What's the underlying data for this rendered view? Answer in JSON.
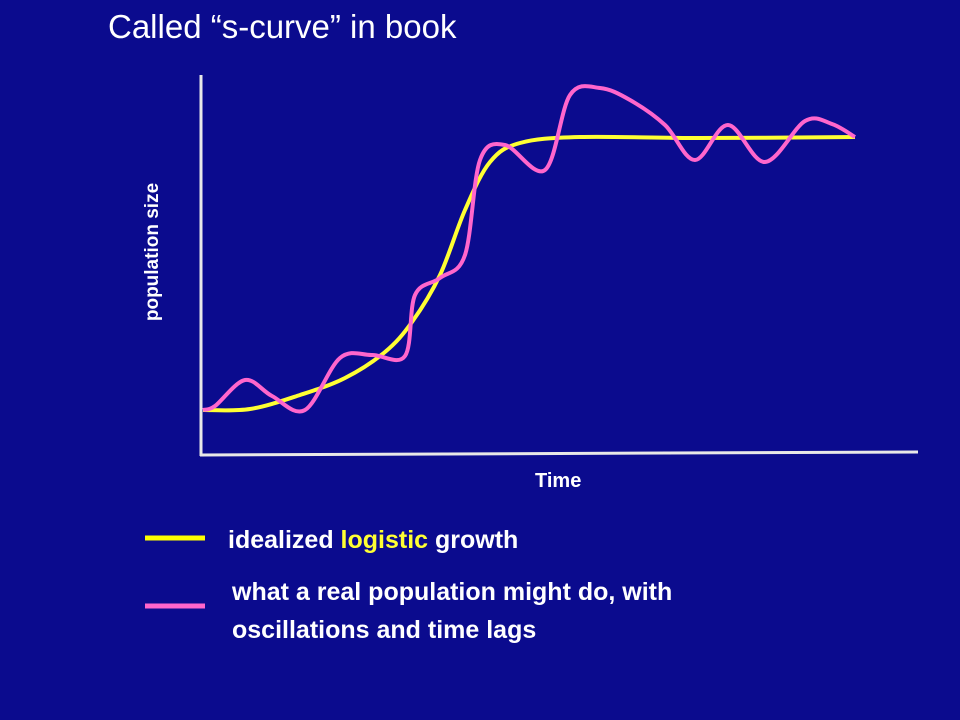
{
  "title": "Called “s-curve” in book",
  "y_axis_label": "population size",
  "x_axis_label": "Time",
  "legend": {
    "idealized": {
      "before": "idealized ",
      "highlight": "logistic",
      "after": " growth"
    },
    "real": {
      "lines": [
        "what a real population might do, with",
        "oscillations and time lags"
      ]
    }
  }
}
